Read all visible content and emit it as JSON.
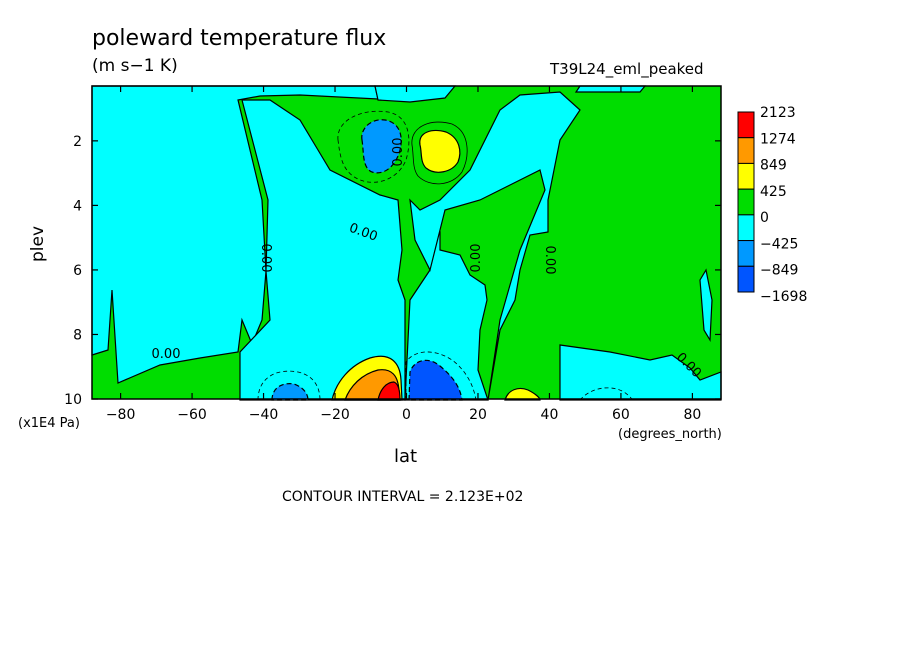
{
  "chart_data": {
    "type": "heatmap",
    "title": "poleward temperature flux",
    "units": "(m s−1 K)",
    "run_label": "T39L24_eml_peaked",
    "xlabel": "lat",
    "xunits": "(degrees_north)",
    "ylabel": "plev",
    "yunits": "(x1E4 Pa)",
    "xlim": [
      -88,
      88
    ],
    "ylim": [
      0.3,
      10
    ],
    "y_inverted": true,
    "x_ticks": [
      "−80",
      "−60",
      "−40",
      "−20",
      "0",
      "20",
      "40",
      "60",
      "80"
    ],
    "x_tick_values": [
      -80,
      -60,
      -40,
      -20,
      0,
      20,
      40,
      60,
      80
    ],
    "y_ticks": [
      "2",
      "4",
      "6",
      "8",
      "10"
    ],
    "y_tick_values": [
      2,
      4,
      6,
      8,
      10
    ],
    "contour_interval_text": "CONTOUR INTERVAL = 2.123E+02",
    "contour_labels": [
      "0.00",
      "0.00",
      "0.00",
      "0.00",
      "0.00",
      "0.00",
      "0.00",
      "0.00"
    ],
    "colorbar": {
      "labels": [
        "2123",
        "1274",
        "849",
        "425",
        "0",
        "−425",
        "−849",
        "−1698"
      ],
      "colors": [
        "#ff0000",
        "#ff9900",
        "#ffff00",
        "#00dd00",
        "#00ffff",
        "#0099ff",
        "#0055ff"
      ]
    },
    "features": [
      {
        "sign": "positive",
        "lat": 8,
        "plev": 2.3,
        "approx_value": 500
      },
      {
        "sign": "negative",
        "lat": -10,
        "plev": 2.2,
        "approx_value": -600
      },
      {
        "sign": "positive",
        "lat": -8,
        "plev": 9.7,
        "approx_value": 1500
      },
      {
        "sign": "negative",
        "lat": 6,
        "plev": 9.6,
        "approx_value": -1000
      },
      {
        "sign": "negative",
        "lat": -33,
        "plev": 9.8,
        "approx_value": -500
      },
      {
        "sign": "positive",
        "lat": 32,
        "plev": 9.8,
        "approx_value": 450
      }
    ]
  }
}
